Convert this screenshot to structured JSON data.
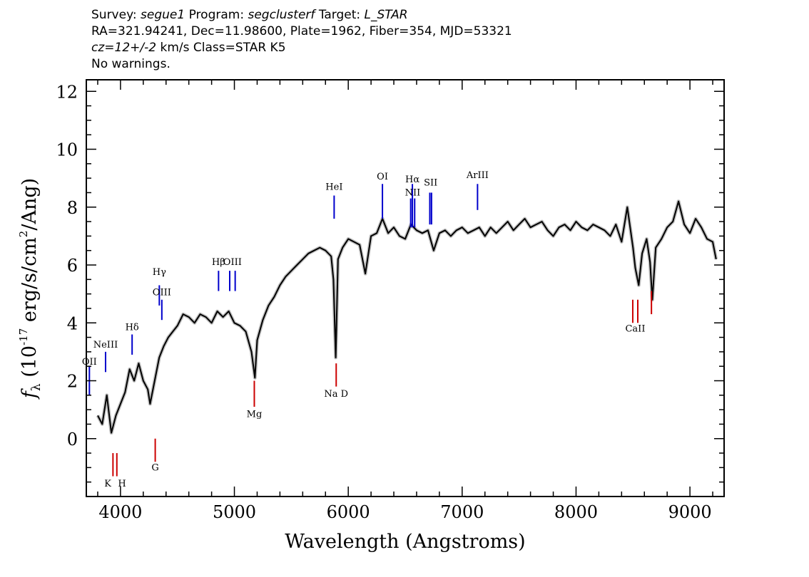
{
  "header": {
    "line1": {
      "survey_label": "Survey:",
      "survey": "segue1",
      "program_label": "Program:",
      "program": "segclusterf",
      "target_label": "Target:",
      "target": "L_STAR"
    },
    "line2": "RA=321.94241, Dec=11.98600, Plate=1962, Fiber=354, MJD=53321",
    "line3": {
      "cz": "cz=12+/-2",
      "rest": " km/s Class=STAR K5"
    },
    "line4": "No warnings."
  },
  "chart_data": {
    "type": "line",
    "xlabel": "Wavelength (Angstroms)",
    "ylabel_parts": {
      "f": "f",
      "sub": "λ",
      "open": " (10",
      "exp1": "-17",
      "mid": " erg/s/cm",
      "exp2": "2",
      "close": "/Ang)"
    },
    "xlim": [
      3700,
      9300
    ],
    "ylim": [
      -2,
      12.4
    ],
    "x_ticks": [
      4000,
      5000,
      6000,
      7000,
      8000,
      9000
    ],
    "x_tick_labels": [
      "4000",
      "5000",
      "6000",
      "7000",
      "8000",
      "9000"
    ],
    "y_ticks": [
      0,
      2,
      4,
      6,
      8,
      10,
      12
    ],
    "y_tick_labels": [
      "0",
      "2",
      "4",
      "6",
      "8",
      "10",
      "12"
    ],
    "series": [
      {
        "color": "#000000",
        "x": [
          3800,
          3840,
          3880,
          3920,
          3960,
          4000,
          4040,
          4080,
          4120,
          4160,
          4200,
          4240,
          4260,
          4300,
          4340,
          4380,
          4420,
          4460,
          4500,
          4550,
          4600,
          4650,
          4700,
          4750,
          4800,
          4850,
          4900,
          4950,
          5000,
          5050,
          5100,
          5150,
          5180,
          5200,
          5250,
          5300,
          5350,
          5400,
          5450,
          5500,
          5550,
          5600,
          5650,
          5700,
          5750,
          5800,
          5850,
          5870,
          5890,
          5910,
          5950,
          6000,
          6050,
          6100,
          6150,
          6200,
          6250,
          6300,
          6350,
          6400,
          6450,
          6500,
          6550,
          6600,
          6650,
          6700,
          6750,
          6800,
          6850,
          6900,
          6950,
          7000,
          7050,
          7100,
          7150,
          7200,
          7250,
          7300,
          7350,
          7400,
          7450,
          7500,
          7550,
          7600,
          7650,
          7700,
          7750,
          7800,
          7850,
          7900,
          7950,
          8000,
          8050,
          8100,
          8150,
          8200,
          8250,
          8300,
          8350,
          8400,
          8450,
          8500,
          8520,
          8550,
          8580,
          8620,
          8650,
          8670,
          8700,
          8750,
          8800,
          8850,
          8900,
          8950,
          9000,
          9050,
          9100,
          9150,
          9200,
          9230
        ],
        "y": [
          0.8,
          0.5,
          1.5,
          0.2,
          0.8,
          1.2,
          1.6,
          2.4,
          2.0,
          2.6,
          2.0,
          1.7,
          1.2,
          2.0,
          2.8,
          3.2,
          3.5,
          3.7,
          3.9,
          4.3,
          4.2,
          4.0,
          4.3,
          4.2,
          4.0,
          4.4,
          4.2,
          4.4,
          4.0,
          3.9,
          3.7,
          3.0,
          2.1,
          3.4,
          4.1,
          4.6,
          4.9,
          5.3,
          5.6,
          5.8,
          6.0,
          6.2,
          6.4,
          6.5,
          6.6,
          6.5,
          6.3,
          5.5,
          2.8,
          6.2,
          6.6,
          6.9,
          6.8,
          6.7,
          5.7,
          7.0,
          7.1,
          7.6,
          7.1,
          7.3,
          7.0,
          6.9,
          7.4,
          7.2,
          7.1,
          7.2,
          6.5,
          7.1,
          7.2,
          7.0,
          7.2,
          7.3,
          7.1,
          7.2,
          7.3,
          7.0,
          7.3,
          7.1,
          7.3,
          7.5,
          7.2,
          7.4,
          7.6,
          7.3,
          7.4,
          7.5,
          7.2,
          7.0,
          7.3,
          7.4,
          7.2,
          7.5,
          7.3,
          7.2,
          7.4,
          7.3,
          7.2,
          7.0,
          7.4,
          6.8,
          8.0,
          6.6,
          5.9,
          5.3,
          6.4,
          6.9,
          6.1,
          4.8,
          6.6,
          6.9,
          7.3,
          7.5,
          8.2,
          7.4,
          7.1,
          7.6,
          7.3,
          6.9,
          6.8,
          6.2
        ]
      }
    ],
    "emission_lines": [
      {
        "name": "OII",
        "wl": 3727,
        "ytop": 2.5,
        "ybot": 1.5,
        "label_y": 2.55
      },
      {
        "name": "NeIII",
        "wl": 3869,
        "ytop": 3.0,
        "ybot": 2.3,
        "label_y": 3.15
      },
      {
        "name": "Hδ",
        "wl": 4102,
        "ytop": 3.6,
        "ybot": 2.9,
        "label_y": 3.75
      },
      {
        "name": "Hγ",
        "wl": 4341,
        "ytop": 5.3,
        "ybot": 4.6,
        "label_y": 5.65
      },
      {
        "name": "OIII",
        "wl": 4363,
        "ytop": 4.8,
        "ybot": 4.1,
        "label_y": 4.95
      },
      {
        "name": "Hβ",
        "wl": 4861,
        "ytop": 5.8,
        "ybot": 5.1,
        "label_y": 6.0
      },
      {
        "name": "OIII",
        "wl": 4959,
        "ytop": 5.8,
        "ybot": 5.1,
        "label_y": 6.0
      },
      {
        "name": "OIII",
        "wl": 5007,
        "ytop": 5.8,
        "ybot": 5.1,
        "label_y": 6.0
      },
      {
        "name": "HeI",
        "wl": 5876,
        "ytop": 8.4,
        "ybot": 7.6,
        "label_y": 8.6
      },
      {
        "name": "OI",
        "wl": 6300,
        "ytop": 8.8,
        "ybot": 7.6,
        "label_y": 8.95
      },
      {
        "name": "NII",
        "wl": 6548,
        "ytop": 8.3,
        "ybot": 7.3,
        "label_y": 8.4
      },
      {
        "name": "Hα",
        "wl": 6563,
        "ytop": 8.8,
        "ybot": 7.3,
        "label_y": 8.85
      },
      {
        "name": "NII",
        "wl": 6583,
        "ytop": 8.3,
        "ybot": 7.3,
        "label_y": 8.4
      },
      {
        "name": "SII",
        "wl": 6716,
        "ytop": 8.5,
        "ybot": 7.4,
        "label_y": 8.75
      },
      {
        "name": "SII",
        "wl": 6731,
        "ytop": 8.5,
        "ybot": 7.4,
        "label_y": 8.75
      },
      {
        "name": "ArIII",
        "wl": 7135,
        "ytop": 8.8,
        "ybot": 7.9,
        "label_y": 9.0
      }
    ],
    "absorption_lines": [
      {
        "name": "K",
        "wl": 3934,
        "ytop": -0.5,
        "ybot": -1.3,
        "label_y": -1.65
      },
      {
        "name": "H",
        "wl": 3968,
        "ytop": -0.5,
        "ybot": -1.3,
        "label_y": -1.65
      },
      {
        "name": "G",
        "wl": 4305,
        "ytop": 0.0,
        "ybot": -0.8,
        "label_y": -1.1
      },
      {
        "name": "Mg",
        "wl": 5175,
        "ytop": 2.0,
        "ybot": 1.1,
        "label_y": 0.75
      },
      {
        "name": "Na D",
        "wl": 5894,
        "ytop": 2.6,
        "ybot": 1.8,
        "label_y": 1.45
      },
      {
        "name": "CaII",
        "wl": 8498,
        "ytop": 4.8,
        "ybot": 4.0,
        "label_y": 3.7
      },
      {
        "name": "CaII",
        "wl": 8542,
        "ytop": 4.8,
        "ybot": 4.0,
        "label_y": 3.7
      },
      {
        "name": "CaII",
        "wl": 8662,
        "ytop": 5.1,
        "ybot": 4.3,
        "label_y": 3.7
      }
    ],
    "colors": {
      "flux": "#000000",
      "error": "#c0c0c0",
      "emission": "#0000cc",
      "absorption": "#cc0000"
    },
    "grid": false,
    "legend": "none"
  }
}
